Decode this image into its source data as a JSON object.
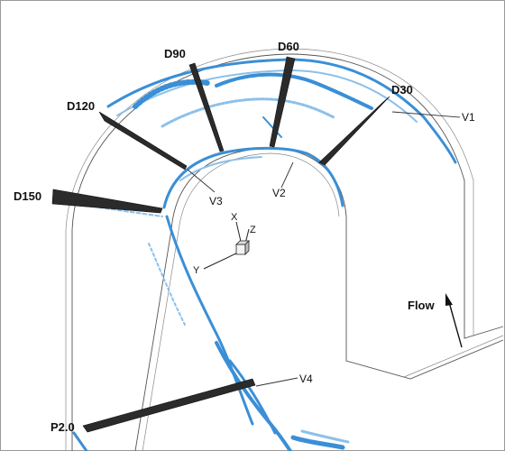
{
  "labels": {
    "d30": "D30",
    "d60": "D60",
    "d90": "D90",
    "d120": "D120",
    "d150": "D150",
    "p20": "P2.0",
    "v1": "V1",
    "v2": "V2",
    "v3": "V3",
    "v4": "V4",
    "flow": "Flow"
  },
  "axes": {
    "x": "X",
    "y": "Y",
    "z": "Z"
  },
  "colors": {
    "vortex": "#3a8fd6",
    "vortex_light": "#8cc0ea",
    "plane": "#2b2b2b",
    "wall": "#555555"
  }
}
